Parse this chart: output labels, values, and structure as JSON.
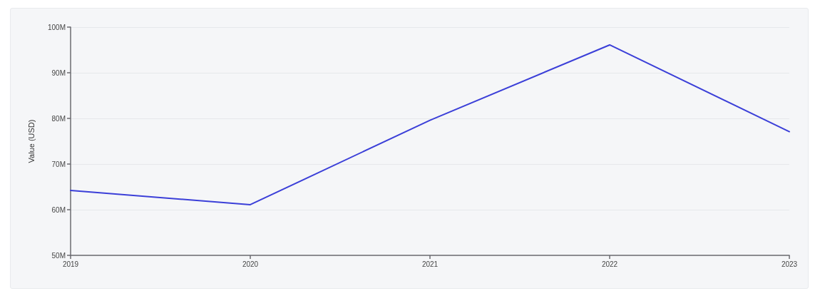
{
  "chart_data": {
    "type": "line",
    "ylabel": "Value (USD)",
    "categories": [
      "2019",
      "2020",
      "2021",
      "2022",
      "2023"
    ],
    "series": [
      {
        "color": "#3b3fd8",
        "values": [
          64200000,
          61100000,
          79600000,
          96100000,
          77100000
        ]
      }
    ],
    "ylim": [
      50000000,
      100000000
    ],
    "yticks": [
      {
        "value": 50000000,
        "label": "50M"
      },
      {
        "value": 60000000,
        "label": "60M"
      },
      {
        "value": 70000000,
        "label": "70M"
      },
      {
        "value": 80000000,
        "label": "80M"
      },
      {
        "value": 90000000,
        "label": "90M"
      },
      {
        "value": 100000000,
        "label": "100M"
      }
    ],
    "grid": "y",
    "marker": "none",
    "line_style": "solid"
  }
}
